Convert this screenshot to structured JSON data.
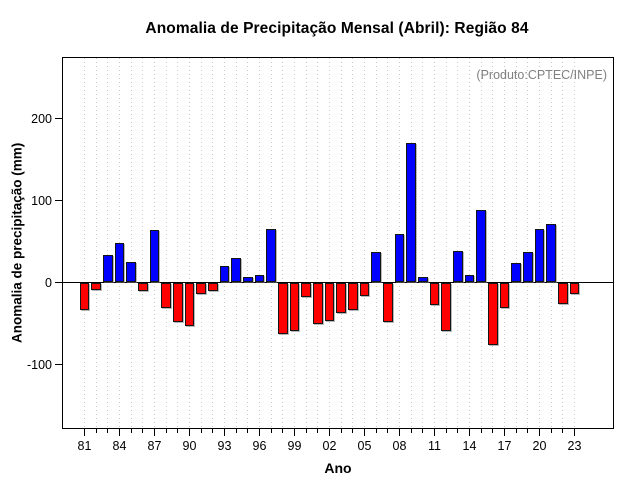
{
  "chart_data": {
    "type": "bar",
    "title": "Anomalia de Precipitação Mensal (Abril): Região 84",
    "annotation": "(Produto:CPTEC/INPE)",
    "xlabel": "Ano",
    "ylabel": "Anomalia de precipitação (mm)",
    "unit": "mm",
    "years": [
      1981,
      1982,
      1983,
      1984,
      1985,
      1986,
      1987,
      1988,
      1989,
      1990,
      1991,
      1992,
      1993,
      1994,
      1995,
      1996,
      1997,
      1998,
      1999,
      2000,
      2001,
      2002,
      2003,
      2004,
      2005,
      2006,
      2007,
      2008,
      2009,
      2010,
      2011,
      2012,
      2013,
      2014,
      2015,
      2016,
      2017,
      2018,
      2019,
      2020,
      2021,
      2022,
      2023
    ],
    "values": [
      -33,
      -9,
      33,
      48,
      25,
      -10,
      64,
      -30,
      -47,
      -52,
      -13,
      -10,
      19,
      29,
      6,
      9,
      65,
      -62,
      -59,
      -17,
      -50,
      -46,
      -37,
      -33,
      -16,
      37,
      -48,
      59,
      170,
      6,
      -27,
      -59,
      38,
      9,
      88,
      -76,
      -30,
      23,
      37,
      65,
      71,
      -26,
      -14
    ],
    "x_tick_years": [
      1981,
      1984,
      1987,
      1990,
      1993,
      1996,
      1999,
      2002,
      2005,
      2008,
      2011,
      2014,
      2017,
      2020,
      2023
    ],
    "x_tick_labels": [
      "81",
      "84",
      "87",
      "90",
      "93",
      "96",
      "99",
      "02",
      "05",
      "08",
      "11",
      "14",
      "17",
      "20",
      "23"
    ],
    "y_ticks": [
      -100,
      0,
      100,
      200
    ],
    "ylim": [
      -178,
      273
    ],
    "grid": "vertical dotted per year",
    "legend": "none",
    "positive_color": "#0000FF",
    "negative_color": "#FF0000",
    "annotation_color": "#808080"
  }
}
